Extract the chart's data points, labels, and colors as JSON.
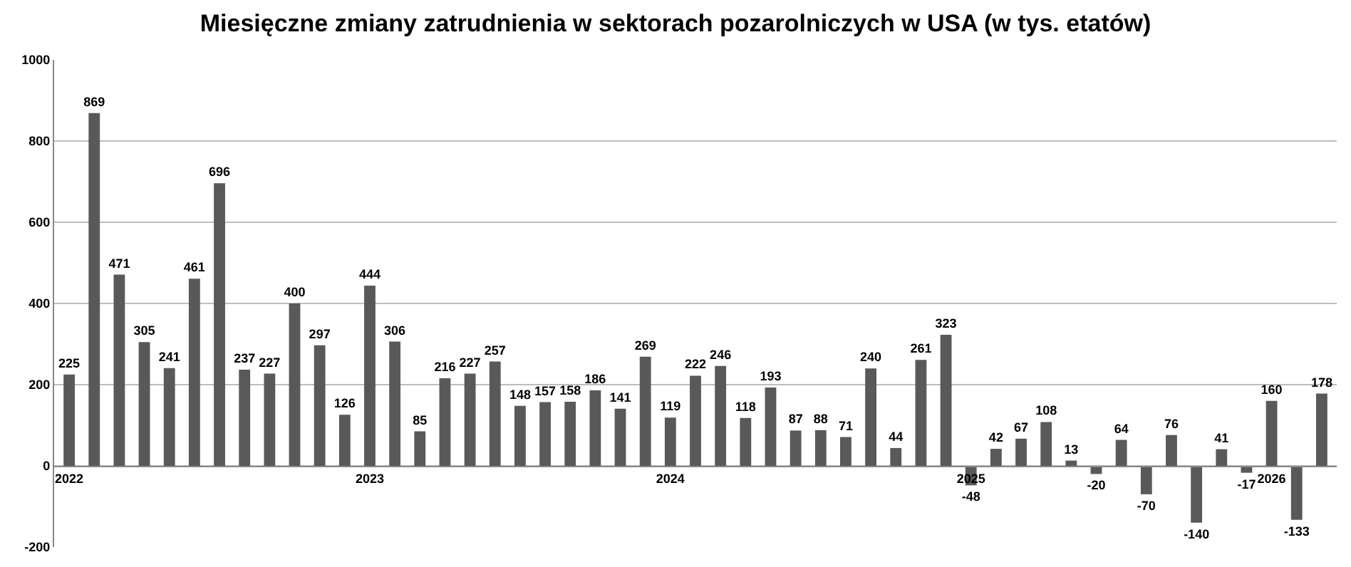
{
  "chart_data": {
    "type": "bar",
    "title": "Miesięczne zmiany zatrudnienia w sektorach pozarolniczych w USA (w tys. etatów)",
    "categories": [
      "2022",
      null,
      null,
      null,
      null,
      null,
      null,
      null,
      null,
      null,
      null,
      null,
      "2023",
      null,
      null,
      null,
      null,
      null,
      null,
      null,
      null,
      null,
      null,
      null,
      "2024",
      null,
      null,
      null,
      null,
      null,
      null,
      null,
      null,
      null,
      null,
      null,
      "2025",
      null,
      null,
      null,
      null,
      null,
      null,
      null,
      null,
      null,
      null,
      null,
      "2026",
      null,
      null
    ],
    "values": [
      225,
      869,
      471,
      305,
      241,
      461,
      696,
      237,
      227,
      400,
      297,
      126,
      444,
      306,
      85,
      216,
      227,
      257,
      148,
      157,
      158,
      186,
      141,
      269,
      119,
      222,
      246,
      118,
      193,
      87,
      88,
      71,
      240,
      44,
      261,
      323,
      -48,
      42,
      67,
      108,
      13,
      -20,
      64,
      -70,
      76,
      -140,
      41,
      -17,
      160,
      -133,
      178
    ],
    "color": "#595959",
    "ylim": [
      -200,
      1000
    ],
    "yticks": [
      -200,
      0,
      200,
      400,
      600,
      800,
      1000
    ],
    "grid": "y",
    "data_labels": true,
    "legend": false
  }
}
